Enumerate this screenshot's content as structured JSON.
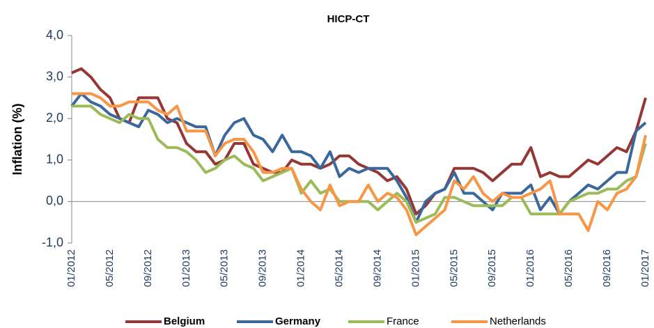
{
  "chart_data": {
    "type": "line",
    "title": "HICP-CT",
    "y_label": "Inflation (%)",
    "categories": [
      "01/2012",
      null,
      null,
      null,
      "05/2012",
      null,
      null,
      null,
      "09/2012",
      null,
      null,
      null,
      "01/2013",
      null,
      null,
      null,
      "05/2013",
      null,
      null,
      null,
      "09/2013",
      null,
      null,
      null,
      "01/2014",
      null,
      null,
      null,
      "05/2014",
      null,
      null,
      null,
      "09/2014",
      null,
      null,
      null,
      "01/2015",
      null,
      null,
      null,
      "05/2015",
      null,
      null,
      null,
      "09/2015",
      null,
      null,
      null,
      "01/2016",
      null,
      null,
      null,
      "05/2016",
      null,
      null,
      null,
      "09/2016",
      null,
      null,
      null,
      "01/2017"
    ],
    "series": [
      {
        "name": "Belgium",
        "color": "#953735",
        "values": [
          3.1,
          3.2,
          3.0,
          2.7,
          2.5,
          2.0,
          1.9,
          2.5,
          2.5,
          2.5,
          2.0,
          1.9,
          1.4,
          1.2,
          1.2,
          0.9,
          1.0,
          1.4,
          1.4,
          0.9,
          0.8,
          0.7,
          0.7,
          1.0,
          0.9,
          0.9,
          0.8,
          0.9,
          1.1,
          1.1,
          0.9,
          0.8,
          0.7,
          0.5,
          0.6,
          0.3,
          -0.3,
          -0.1,
          0.2,
          0.3,
          0.8,
          0.8,
          0.8,
          0.7,
          0.5,
          0.7,
          0.9,
          0.9,
          1.3,
          0.6,
          0.7,
          0.6,
          0.6,
          0.8,
          1.0,
          0.9,
          1.1,
          1.3,
          1.2,
          1.7,
          2.5
        ]
      },
      {
        "name": "Germany",
        "color": "#3a679c",
        "values": [
          2.3,
          2.6,
          2.4,
          2.3,
          2.1,
          2.0,
          1.9,
          1.8,
          2.2,
          2.1,
          1.9,
          2.0,
          1.9,
          1.8,
          1.8,
          1.1,
          1.6,
          1.9,
          2.0,
          1.6,
          1.5,
          1.2,
          1.6,
          1.2,
          1.2,
          1.1,
          0.8,
          1.2,
          0.6,
          0.8,
          0.7,
          0.8,
          0.8,
          0.8,
          0.5,
          0.1,
          -0.5,
          0.0,
          0.2,
          0.3,
          0.7,
          0.2,
          0.2,
          0.0,
          -0.2,
          0.2,
          0.2,
          0.2,
          0.4,
          -0.2,
          0.1,
          -0.3,
          0.0,
          0.2,
          0.4,
          0.3,
          0.5,
          0.7,
          0.7,
          1.7,
          1.9
        ]
      },
      {
        "name": "France",
        "color": "#9bbb59",
        "values": [
          2.3,
          2.3,
          2.3,
          2.1,
          2.0,
          1.9,
          2.1,
          2.0,
          2.0,
          1.5,
          1.3,
          1.3,
          1.2,
          1.0,
          0.7,
          0.8,
          1.0,
          1.1,
          0.9,
          0.8,
          0.5,
          0.6,
          0.7,
          0.8,
          0.2,
          0.5,
          0.2,
          0.3,
          0.0,
          0.0,
          0.0,
          0.0,
          -0.2,
          0.0,
          0.2,
          0.0,
          -0.5,
          -0.4,
          -0.3,
          0.1,
          0.1,
          0.0,
          -0.1,
          -0.1,
          -0.1,
          -0.1,
          0.1,
          0.1,
          -0.3,
          -0.3,
          -0.3,
          -0.3,
          0.0,
          0.1,
          0.2,
          0.2,
          0.3,
          0.3,
          0.5,
          0.6,
          1.4
        ]
      },
      {
        "name": "Netherlands",
        "color": "#f79646",
        "values": [
          2.6,
          2.6,
          2.6,
          2.5,
          2.3,
          2.3,
          2.4,
          2.4,
          2.4,
          2.2,
          2.1,
          2.3,
          1.7,
          1.7,
          1.7,
          1.1,
          1.4,
          1.5,
          1.5,
          1.2,
          0.7,
          0.7,
          0.8,
          0.8,
          0.3,
          0.0,
          -0.2,
          0.4,
          -0.1,
          0.0,
          0.0,
          0.4,
          0.0,
          0.2,
          0.1,
          -0.2,
          -0.8,
          -0.6,
          -0.4,
          -0.2,
          0.5,
          0.3,
          0.6,
          0.2,
          0.0,
          0.2,
          0.1,
          0.1,
          0.2,
          0.3,
          0.5,
          -0.3,
          -0.3,
          -0.3,
          -0.7,
          0.0,
          -0.2,
          0.2,
          0.3,
          0.6,
          1.6
        ]
      }
    ],
    "ylim": [
      -1,
      4
    ],
    "yticks": [
      {
        "value": -1,
        "label": "-1,0"
      },
      {
        "value": 0,
        "label": "0,0"
      },
      {
        "value": 1,
        "label": "1,0"
      },
      {
        "value": 2,
        "label": "2,0"
      },
      {
        "value": 3,
        "label": "3,0"
      },
      {
        "value": 4,
        "label": "4,0"
      }
    ],
    "legend": "bottom"
  }
}
